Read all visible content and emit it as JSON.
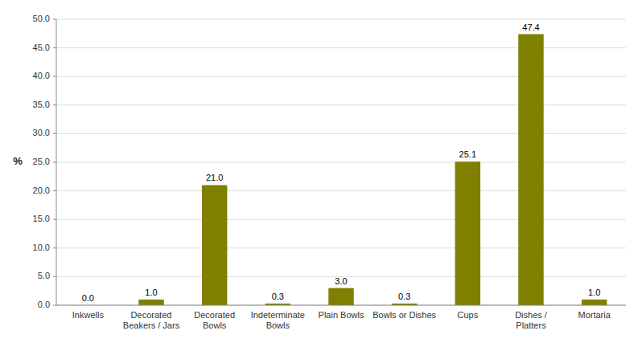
{
  "chart_data": {
    "type": "bar",
    "categories": [
      "Inkwells",
      "Decorated\nBeakers / Jars",
      "Decorated\nBowls",
      "Indeterminate\nBowls",
      "Plain Bowls",
      "Bowls or Dishes",
      "Cups",
      "Dishes /\nPlatters",
      "Mortaria"
    ],
    "values": [
      0.0,
      1.0,
      21.0,
      0.3,
      3.0,
      0.3,
      25.1,
      47.4,
      1.0
    ],
    "value_labels": [
      "0.0",
      "1.0",
      "21.0",
      "0.3",
      "3.0",
      "0.3",
      "25.1",
      "47.4",
      "1.0"
    ],
    "color": "#808000",
    "ylabel": "%",
    "ylim": [
      0,
      50
    ],
    "yticks": [
      {
        "value": 0.0,
        "label": "0.0"
      },
      {
        "value": 5.0,
        "label": "5.0"
      },
      {
        "value": 10.0,
        "label": "10.0"
      },
      {
        "value": 15.0,
        "label": "15.0"
      },
      {
        "value": 20.0,
        "label": "20.0"
      },
      {
        "value": 25.0,
        "label": "25.0"
      },
      {
        "value": 30.0,
        "label": "30.0"
      },
      {
        "value": 35.0,
        "label": "35.0"
      },
      {
        "value": 40.0,
        "label": "40.0"
      },
      {
        "value": 45.0,
        "label": "45.0"
      },
      {
        "value": 50.0,
        "label": "50.0"
      }
    ],
    "grid": true,
    "data_labels": true
  }
}
